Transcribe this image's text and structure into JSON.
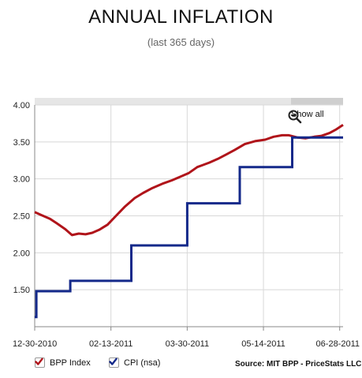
{
  "chart_data": {
    "type": "line",
    "title": "ANNUAL INFLATION",
    "subtitle": "(last 365 days)",
    "x_start": "2010-12-30",
    "x_end": "2011-06-30",
    "x_tick_labels": [
      "12-30-2010",
      "02-13-2011",
      "03-30-2011",
      "05-14-2011",
      "06-28-2011"
    ],
    "x_ticks": [
      "2010-12-30",
      "2011-02-13",
      "2011-03-30",
      "2011-05-14",
      "2011-06-28"
    ],
    "ylim": [
      1.0,
      4.0
    ],
    "y_tick_labels": [
      "4.00",
      "3.50",
      "3.00",
      "2.50",
      "2.00",
      "1.50"
    ],
    "y_ticks": [
      4.0,
      3.5,
      3.0,
      2.5,
      2.0,
      1.5
    ],
    "grid": true,
    "legend_position": "bottom-left",
    "series": [
      {
        "name": "BPP Index",
        "color": "#b0141a",
        "style": "line",
        "x": [
          "2010-12-30",
          "2011-01-03",
          "2011-01-08",
          "2011-01-12",
          "2011-01-17",
          "2011-01-21",
          "2011-01-25",
          "2011-01-29",
          "2011-02-02",
          "2011-02-06",
          "2011-02-11",
          "2011-02-16",
          "2011-02-21",
          "2011-02-27",
          "2011-03-04",
          "2011-03-09",
          "2011-03-16",
          "2011-03-21",
          "2011-03-26",
          "2011-03-31",
          "2011-04-05",
          "2011-04-12",
          "2011-04-17",
          "2011-04-22",
          "2011-04-27",
          "2011-05-03",
          "2011-05-09",
          "2011-05-15",
          "2011-05-20",
          "2011-05-25",
          "2011-05-29",
          "2011-06-03",
          "2011-06-08",
          "2011-06-13",
          "2011-06-17",
          "2011-06-22",
          "2011-06-26",
          "2011-06-30"
        ],
        "y": [
          2.55,
          2.51,
          2.46,
          2.4,
          2.32,
          2.24,
          2.26,
          2.25,
          2.27,
          2.31,
          2.38,
          2.5,
          2.62,
          2.74,
          2.81,
          2.87,
          2.94,
          2.98,
          3.03,
          3.08,
          3.16,
          3.22,
          3.27,
          3.33,
          3.39,
          3.47,
          3.51,
          3.53,
          3.57,
          3.59,
          3.59,
          3.56,
          3.55,
          3.57,
          3.58,
          3.62,
          3.67,
          3.73
        ]
      },
      {
        "name": "CPI (nsa)",
        "color": "#14298a",
        "style": "step",
        "x": [
          "2010-12-30",
          "2010-12-31",
          "2010-12-31",
          "2011-01-20",
          "2011-01-20",
          "2011-02-07",
          "2011-02-07",
          "2011-02-25",
          "2011-02-25",
          "2011-03-30",
          "2011-03-30",
          "2011-04-30",
          "2011-04-30",
          "2011-05-31",
          "2011-05-31",
          "2011-06-30"
        ],
        "y": [
          1.13,
          1.13,
          1.48,
          1.48,
          1.62,
          1.62,
          1.62,
          1.62,
          2.1,
          2.1,
          2.67,
          2.67,
          3.16,
          3.16,
          3.56,
          3.56
        ]
      }
    ]
  },
  "controls": {
    "show_all_label": "Show all",
    "zoom_icon": "zoom-out-icon"
  },
  "legend": {
    "items": [
      {
        "label": "BPP Index",
        "color": "#b0141a",
        "checked": true
      },
      {
        "label": "CPI (nsa)",
        "color": "#14298a",
        "checked": true
      }
    ]
  },
  "source": "Source: MIT BPP - PriceStats LLC"
}
